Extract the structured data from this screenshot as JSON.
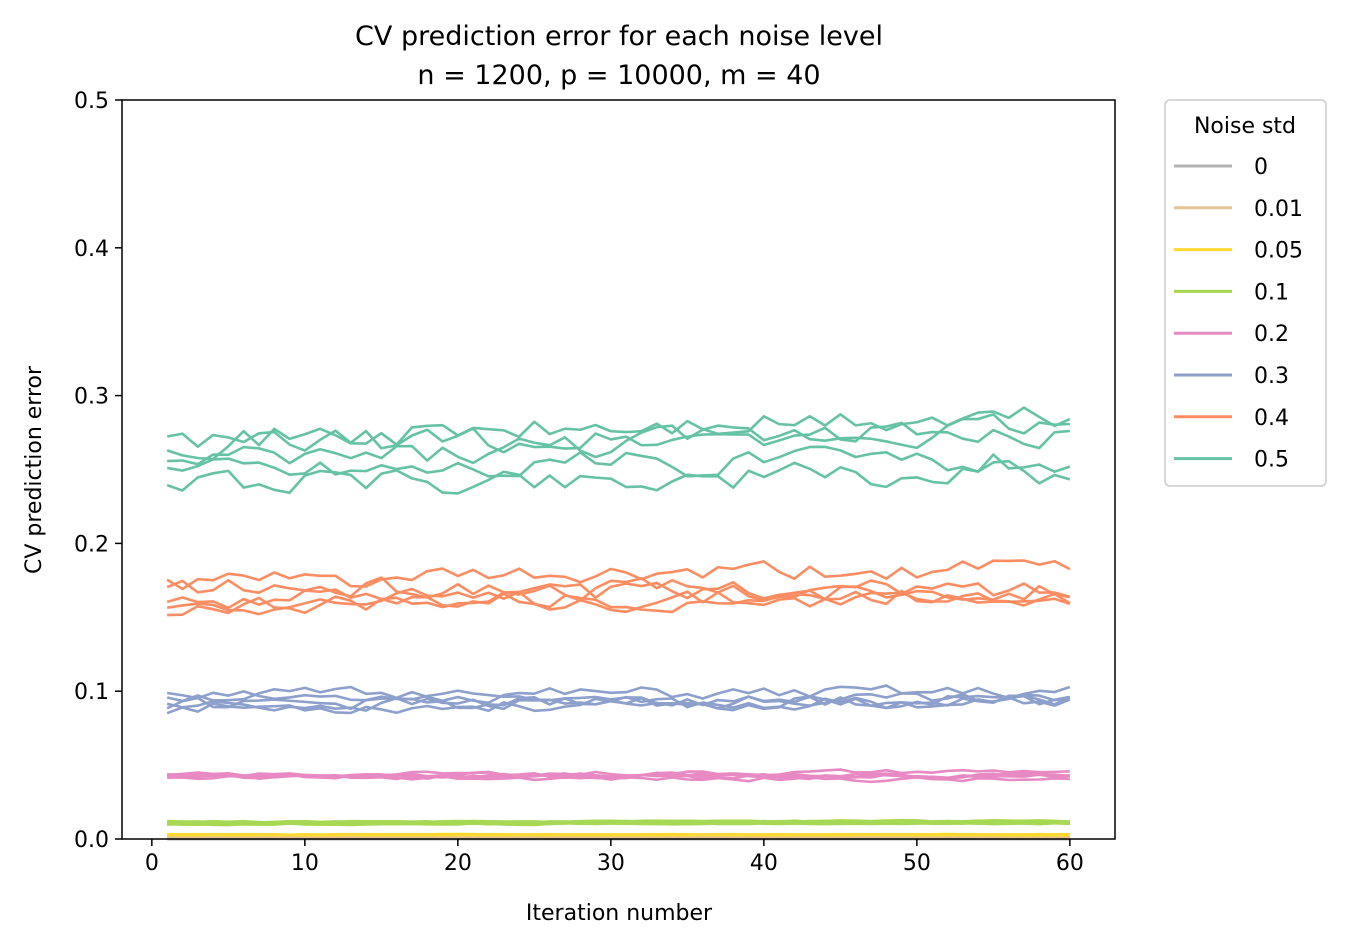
{
  "chart_data": {
    "type": "line",
    "title": "CV prediction error for each noise level",
    "subtitle": "n = 1200, p = 10000, m = 40",
    "xlabel": "Iteration number",
    "ylabel": "CV prediction error",
    "xlim": [
      -1.95,
      62.95
    ],
    "ylim": [
      0.0,
      0.5
    ],
    "xticks": [
      0,
      10,
      20,
      30,
      40,
      50,
      60
    ],
    "xtick_labels": [
      "0",
      "10",
      "20",
      "30",
      "40",
      "50",
      "60"
    ],
    "yticks": [
      0.0,
      0.1,
      0.2,
      0.3,
      0.4,
      0.5
    ],
    "ytick_labels": [
      "0.0",
      "0.1",
      "0.2",
      "0.3",
      "0.4",
      "0.5"
    ],
    "x_range": [
      1,
      60
    ],
    "legend": {
      "title": "Noise std",
      "placement": "outside-right-top",
      "entries": [
        {
          "label": "0",
          "color": "#b3b3b3"
        },
        {
          "label": "0.01",
          "color": "#e5c494"
        },
        {
          "label": "0.05",
          "color": "#ffd92f"
        },
        {
          "label": "0.1",
          "color": "#a6d854"
        },
        {
          "label": "0.2",
          "color": "#e78ac3"
        },
        {
          "label": "0.3",
          "color": "#8da0cb"
        },
        {
          "label": "0.4",
          "color": "#fc8d62"
        },
        {
          "label": "0.5",
          "color": "#66c2a5"
        }
      ]
    },
    "series_groups": [
      {
        "noise": "0",
        "color": "#b3b3b3",
        "runs": [
          {
            "base": 0.0,
            "amp": 0.0,
            "drift": 0.0,
            "seed": 1
          },
          {
            "base": 0.0,
            "amp": 0.0,
            "drift": 0.0,
            "seed": 2
          },
          {
            "base": 0.0,
            "amp": 0.0,
            "drift": 0.0,
            "seed": 3
          },
          {
            "base": 0.0,
            "amp": 0.0,
            "drift": 0.0,
            "seed": 4
          },
          {
            "base": 0.0,
            "amp": 0.0,
            "drift": 0.0,
            "seed": 5
          }
        ]
      },
      {
        "noise": "0.01",
        "color": "#e5c494",
        "runs": [
          {
            "base": 0.0011,
            "amp": 0.0001,
            "drift": 0.0,
            "seed": 11
          },
          {
            "base": 0.0012,
            "amp": 0.0001,
            "drift": 0.0,
            "seed": 12
          },
          {
            "base": 0.0013,
            "amp": 0.0001,
            "drift": 0.0,
            "seed": 13
          },
          {
            "base": 0.0012,
            "amp": 0.0001,
            "drift": 0.0,
            "seed": 14
          },
          {
            "base": 0.0011,
            "amp": 0.0001,
            "drift": 0.0,
            "seed": 15
          }
        ]
      },
      {
        "noise": "0.05",
        "color": "#ffd92f",
        "runs": [
          {
            "base": 0.0027,
            "amp": 0.0002,
            "drift": 0.0,
            "seed": 21
          },
          {
            "base": 0.0029,
            "amp": 0.0002,
            "drift": 0.0,
            "seed": 22
          },
          {
            "base": 0.003,
            "amp": 0.0002,
            "drift": 0.0,
            "seed": 23
          },
          {
            "base": 0.0028,
            "amp": 0.0002,
            "drift": 0.0,
            "seed": 24
          },
          {
            "base": 0.0031,
            "amp": 0.0002,
            "drift": 0.0,
            "seed": 25
          }
        ]
      },
      {
        "noise": "0.1",
        "color": "#a6d854",
        "runs": [
          {
            "base": 0.0105,
            "amp": 0.0005,
            "drift": 0.0006,
            "seed": 31
          },
          {
            "base": 0.0108,
            "amp": 0.0005,
            "drift": 0.0006,
            "seed": 32
          },
          {
            "base": 0.011,
            "amp": 0.0005,
            "drift": 0.0007,
            "seed": 33
          },
          {
            "base": 0.0106,
            "amp": 0.0005,
            "drift": 0.0005,
            "seed": 34
          },
          {
            "base": 0.0112,
            "amp": 0.0005,
            "drift": 0.0006,
            "seed": 35
          }
        ]
      },
      {
        "noise": "0.2",
        "color": "#e78ac3",
        "runs": [
          {
            "base": 0.0425,
            "amp": 0.0015,
            "drift": 0.0,
            "seed": 41
          },
          {
            "base": 0.042,
            "amp": 0.0015,
            "drift": -0.002,
            "seed": 42
          },
          {
            "base": 0.043,
            "amp": 0.0015,
            "drift": 0.003,
            "seed": 43
          },
          {
            "base": 0.0415,
            "amp": 0.0015,
            "drift": 0.002,
            "seed": 44
          },
          {
            "base": 0.0435,
            "amp": 0.0015,
            "drift": -0.001,
            "seed": 45
          }
        ]
      },
      {
        "noise": "0.3",
        "color": "#8da0cb",
        "runs": [
          {
            "base": 0.097,
            "amp": 0.004,
            "drift": 0.002,
            "seed": 51
          },
          {
            "base": 0.091,
            "amp": 0.004,
            "drift": 0.003,
            "seed": 52
          },
          {
            "base": 0.089,
            "amp": 0.004,
            "drift": 0.004,
            "seed": 53
          },
          {
            "base": 0.096,
            "amp": 0.004,
            "drift": -0.003,
            "seed": 54
          },
          {
            "base": 0.09,
            "amp": 0.004,
            "drift": 0.005,
            "seed": 55
          }
        ]
      },
      {
        "noise": "0.4",
        "color": "#fc8d62",
        "runs": [
          {
            "base": 0.173,
            "amp": 0.006,
            "drift": 0.01,
            "seed": 61
          },
          {
            "base": 0.17,
            "amp": 0.006,
            "drift": -0.002,
            "seed": 62
          },
          {
            "base": 0.162,
            "amp": 0.006,
            "drift": 0.008,
            "seed": 63
          },
          {
            "base": 0.16,
            "amp": 0.006,
            "drift": 0.004,
            "seed": 64
          },
          {
            "base": 0.157,
            "amp": 0.006,
            "drift": 0.01,
            "seed": 65
          }
        ]
      },
      {
        "noise": "0.5",
        "color": "#66c2a5",
        "runs": [
          {
            "base": 0.27,
            "amp": 0.008,
            "drift": 0.015,
            "seed": 71
          },
          {
            "base": 0.266,
            "amp": 0.008,
            "drift": 0.01,
            "seed": 72
          },
          {
            "base": 0.252,
            "amp": 0.008,
            "drift": 0.03,
            "seed": 73
          },
          {
            "base": 0.25,
            "amp": 0.008,
            "drift": 0.008,
            "seed": 74
          },
          {
            "base": 0.241,
            "amp": 0.008,
            "drift": 0.005,
            "seed": 75
          }
        ]
      }
    ]
  }
}
